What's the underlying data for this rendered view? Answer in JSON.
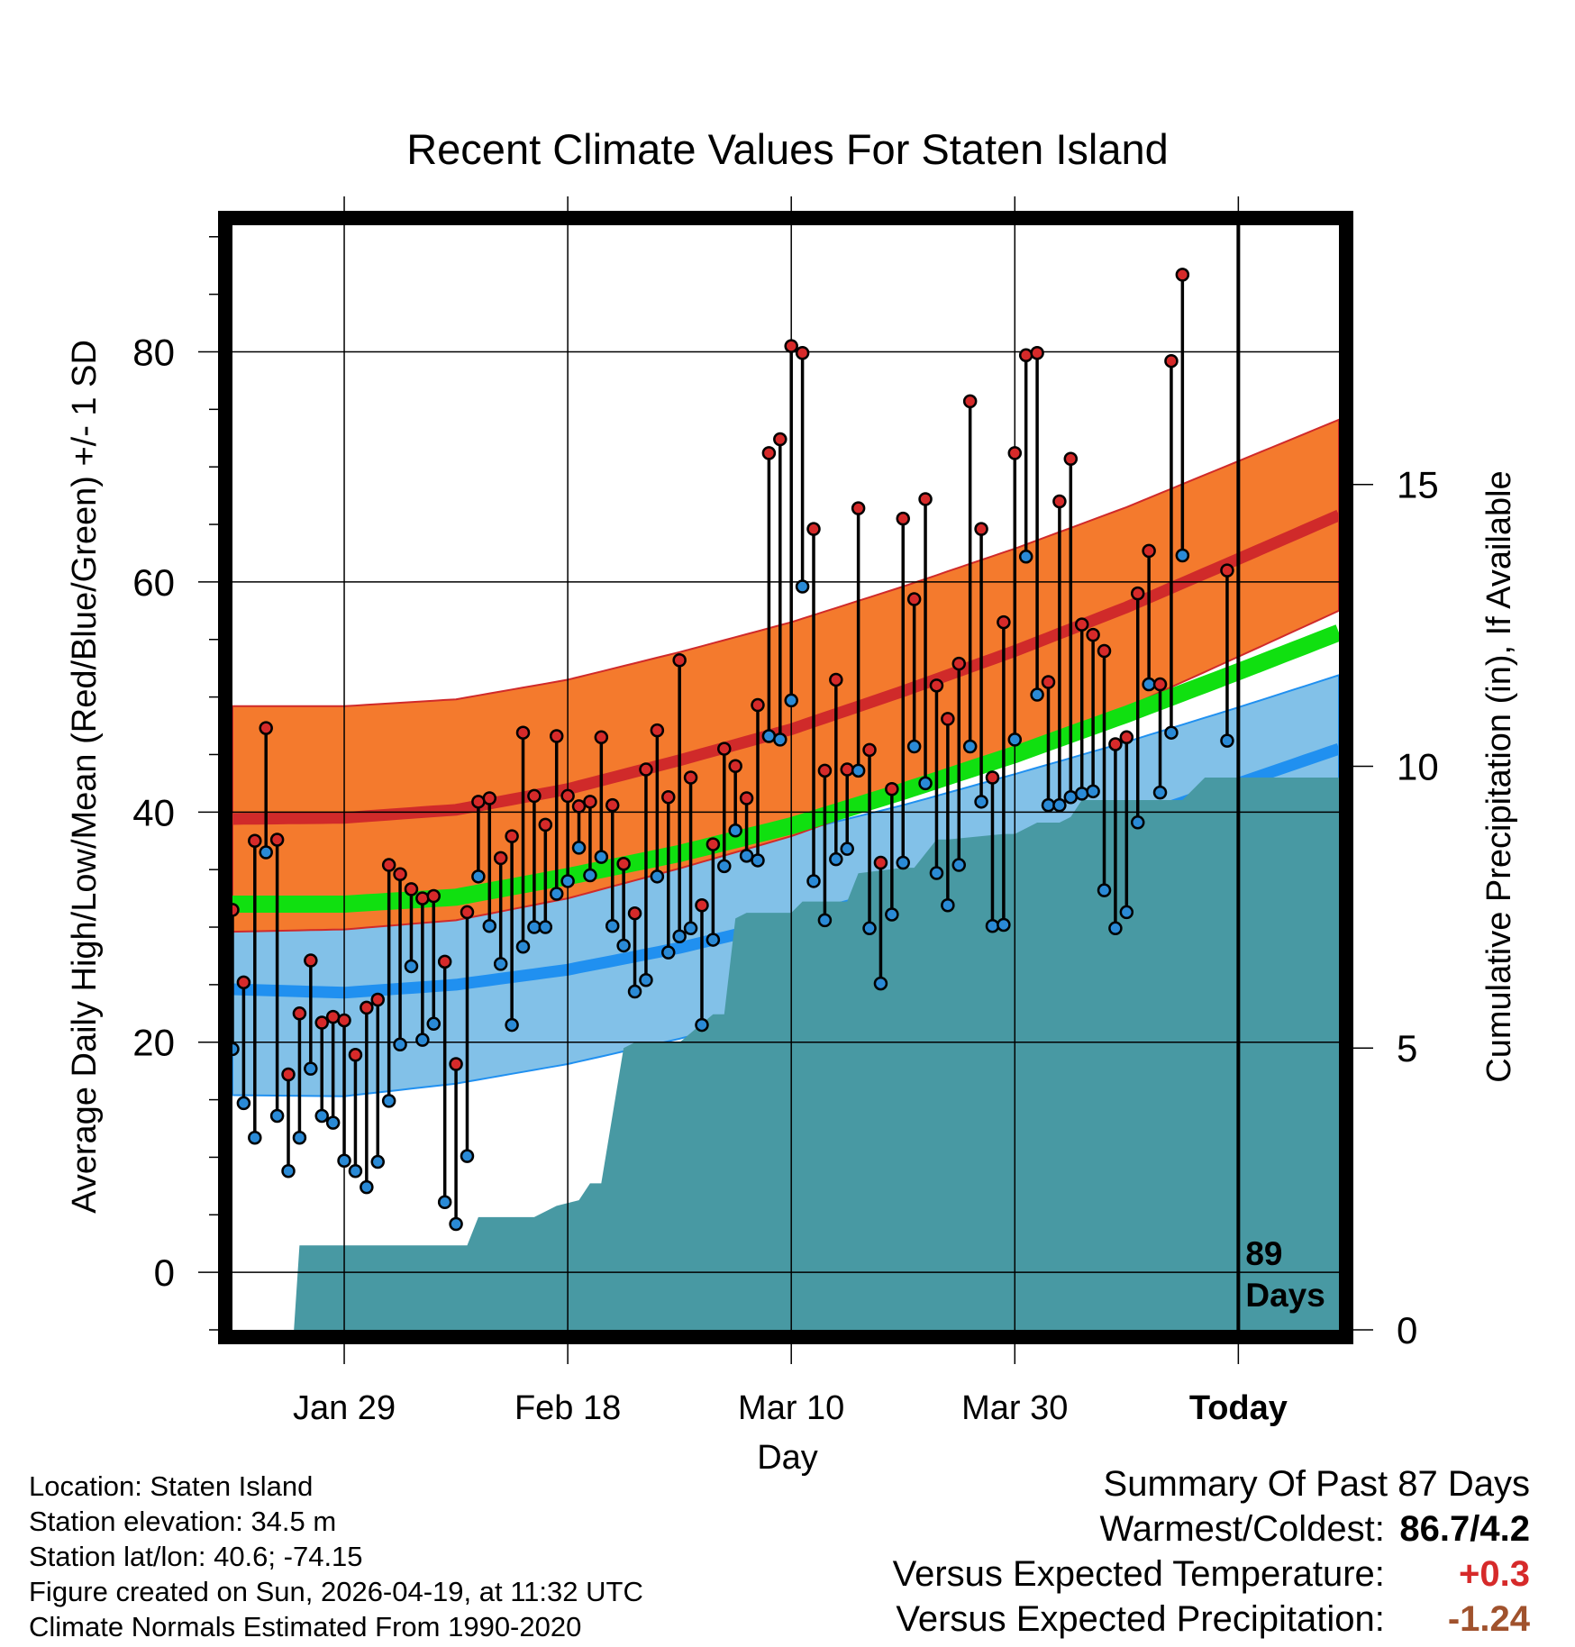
{
  "chart_data": {
    "type": "line",
    "title": "Recent Climate Values For Staten Island",
    "xlabel": "Day",
    "ylabel": "Average Daily High/Low/Mean (Red/Blue/Green) +/- 1 SD",
    "y2label": "Cumulative Precipitation (in), If Available",
    "xlim": [
      0,
      99
    ],
    "ylim": [
      -5,
      91
    ],
    "y2lim": [
      0,
      19.6
    ],
    "x_ticks": [
      {
        "day": 10,
        "label": "Jan 29"
      },
      {
        "day": 30,
        "label": "Feb 18"
      },
      {
        "day": 50,
        "label": "Mar 10"
      },
      {
        "day": 70,
        "label": "Mar 30"
      },
      {
        "day": 90,
        "label": "Today"
      }
    ],
    "y_ticks": [
      0,
      20,
      40,
      60,
      80
    ],
    "y2_ticks": [
      0,
      5,
      10,
      15
    ],
    "today_day": 90,
    "today_label_line1": "89",
    "today_label_line2": "Days",
    "normals": {
      "days": [
        0,
        10,
        20,
        30,
        40,
        50,
        60,
        70,
        80,
        90,
        99
      ],
      "high_mean": [
        39.4,
        39.5,
        40.2,
        42.0,
        44.5,
        47.2,
        50.5,
        54.0,
        57.8,
        62.0,
        65.8
      ],
      "high_sd": [
        9.8,
        9.7,
        9.6,
        9.5,
        9.4,
        9.3,
        9.1,
        8.9,
        8.7,
        8.5,
        8.3
      ],
      "low_mean": [
        24.6,
        24.3,
        25.0,
        26.3,
        28.2,
        30.5,
        33.2,
        36.2,
        39.2,
        42.5,
        45.5
      ],
      "low_sd": [
        9.2,
        9.0,
        8.6,
        8.2,
        7.9,
        7.7,
        7.4,
        7.1,
        6.9,
        6.6,
        6.4
      ],
      "avg_mean": [
        32.0,
        32.0,
        32.6,
        34.4,
        36.4,
        38.8,
        41.8,
        45.0,
        48.5,
        52.2,
        55.6
      ]
    },
    "observations": [
      {
        "day": 0,
        "high": 31.5,
        "low": 19.4
      },
      {
        "day": 1,
        "high": 25.2,
        "low": 14.7
      },
      {
        "day": 2,
        "high": 37.5,
        "low": 11.7
      },
      {
        "day": 3,
        "high": 47.3,
        "low": 36.5
      },
      {
        "day": 4,
        "high": 37.6,
        "low": 13.6
      },
      {
        "day": 5,
        "high": 17.2,
        "low": 8.8
      },
      {
        "day": 6,
        "high": 22.5,
        "low": 11.7
      },
      {
        "day": 7,
        "high": 27.1,
        "low": 17.7
      },
      {
        "day": 8,
        "high": 21.7,
        "low": 13.6
      },
      {
        "day": 9,
        "high": 22.2,
        "low": 13.0
      },
      {
        "day": 10,
        "high": 21.9,
        "low": 9.7
      },
      {
        "day": 11,
        "high": 18.9,
        "low": 8.8
      },
      {
        "day": 12,
        "high": 23.0,
        "low": 7.4
      },
      {
        "day": 13,
        "high": 23.7,
        "low": 9.6
      },
      {
        "day": 14,
        "high": 35.4,
        "low": 14.9
      },
      {
        "day": 15,
        "high": 34.6,
        "low": 19.8
      },
      {
        "day": 16,
        "high": 33.3,
        "low": 26.6
      },
      {
        "day": 17,
        "high": 32.5,
        "low": 20.2
      },
      {
        "day": 18,
        "high": 32.7,
        "low": 21.6
      },
      {
        "day": 19,
        "high": 27.0,
        "low": 6.1
      },
      {
        "day": 20,
        "high": 18.1,
        "low": 4.2
      },
      {
        "day": 21,
        "high": 31.3,
        "low": 10.1
      },
      {
        "day": 22,
        "high": 40.9,
        "low": 34.4
      },
      {
        "day": 23,
        "high": 41.2,
        "low": 30.1
      },
      {
        "day": 24,
        "high": 36.0,
        "low": 26.8
      },
      {
        "day": 25,
        "high": 37.9,
        "low": 21.5
      },
      {
        "day": 26,
        "high": 46.9,
        "low": 28.3
      },
      {
        "day": 27,
        "high": 41.4,
        "low": 30.0
      },
      {
        "day": 28,
        "high": 38.9,
        "low": 30.0
      },
      {
        "day": 29,
        "high": 46.6,
        "low": 32.9
      },
      {
        "day": 30,
        "high": 41.4,
        "low": 34.0
      },
      {
        "day": 31,
        "high": 40.5,
        "low": 36.9
      },
      {
        "day": 32,
        "high": 40.9,
        "low": 34.5
      },
      {
        "day": 33,
        "high": 46.5,
        "low": 36.1
      },
      {
        "day": 34,
        "high": 40.6,
        "low": 30.1
      },
      {
        "day": 35,
        "high": 35.5,
        "low": 28.4
      },
      {
        "day": 36,
        "high": 31.2,
        "low": 24.4
      },
      {
        "day": 37,
        "high": 43.7,
        "low": 25.4
      },
      {
        "day": 38,
        "high": 47.1,
        "low": 34.4
      },
      {
        "day": 39,
        "high": 41.3,
        "low": 27.8
      },
      {
        "day": 40,
        "high": 53.2,
        "low": 29.2
      },
      {
        "day": 41,
        "high": 43.0,
        "low": 29.9
      },
      {
        "day": 42,
        "high": 31.9,
        "low": 21.5
      },
      {
        "day": 43,
        "high": 37.2,
        "low": 28.9
      },
      {
        "day": 44,
        "high": 45.5,
        "low": 35.3
      },
      {
        "day": 45,
        "high": 44.0,
        "low": 38.4
      },
      {
        "day": 46,
        "high": 41.2,
        "low": 36.2
      },
      {
        "day": 47,
        "high": 49.3,
        "low": 35.8
      },
      {
        "day": 48,
        "high": 71.2,
        "low": 46.6
      },
      {
        "day": 49,
        "high": 72.4,
        "low": 46.3
      },
      {
        "day": 50,
        "high": 80.5,
        "low": 49.7
      },
      {
        "day": 51,
        "high": 79.9,
        "low": 59.6
      },
      {
        "day": 52,
        "high": 64.6,
        "low": 34.0
      },
      {
        "day": 53,
        "high": 43.6,
        "low": 30.6
      },
      {
        "day": 54,
        "high": 51.5,
        "low": 35.9
      },
      {
        "day": 55,
        "high": 43.7,
        "low": 36.8
      },
      {
        "day": 56,
        "high": 66.4,
        "low": 43.6
      },
      {
        "day": 57,
        "high": 45.4,
        "low": 29.9
      },
      {
        "day": 58,
        "high": 35.6,
        "low": 25.1
      },
      {
        "day": 59,
        "high": 42.0,
        "low": 31.1
      },
      {
        "day": 60,
        "high": 65.5,
        "low": 35.6
      },
      {
        "day": 61,
        "high": 58.5,
        "low": 45.7
      },
      {
        "day": 62,
        "high": 67.2,
        "low": 42.5
      },
      {
        "day": 63,
        "high": 51.0,
        "low": 34.7
      },
      {
        "day": 64,
        "high": 48.1,
        "low": 31.9
      },
      {
        "day": 65,
        "high": 52.9,
        "low": 35.4
      },
      {
        "day": 66,
        "high": 75.7,
        "low": 45.7
      },
      {
        "day": 67,
        "high": 64.6,
        "low": 40.9
      },
      {
        "day": 68,
        "high": 43.0,
        "low": 30.1
      },
      {
        "day": 69,
        "high": 56.5,
        "low": 30.2
      },
      {
        "day": 70,
        "high": 71.2,
        "low": 46.3
      },
      {
        "day": 71,
        "high": 79.7,
        "low": 62.2
      },
      {
        "day": 72,
        "high": 79.9,
        "low": 50.2
      },
      {
        "day": 73,
        "high": 51.3,
        "low": 40.6
      },
      {
        "day": 74,
        "high": 67.0,
        "low": 40.6
      },
      {
        "day": 75,
        "high": 70.7,
        "low": 41.3
      },
      {
        "day": 76,
        "high": 56.3,
        "low": 41.6
      },
      {
        "day": 77,
        "high": 55.4,
        "low": 41.8
      },
      {
        "day": 78,
        "high": 54.0,
        "low": 33.2
      },
      {
        "day": 79,
        "high": 45.9,
        "low": 29.9
      },
      {
        "day": 80,
        "high": 46.5,
        "low": 31.3
      },
      {
        "day": 81,
        "high": 59.0,
        "low": 39.1
      },
      {
        "day": 82,
        "high": 62.7,
        "low": 51.1
      },
      {
        "day": 83,
        "high": 51.1,
        "low": 41.7
      },
      {
        "day": 84,
        "high": 79.2,
        "low": 46.9
      },
      {
        "day": 85,
        "high": 86.7,
        "low": 62.3
      },
      {
        "day": 89,
        "high": 61.0,
        "low": 46.2
      }
    ],
    "precipitation_cumulative": {
      "days": [
        0,
        5.5,
        6,
        21,
        22,
        27,
        29,
        31,
        32,
        33,
        35,
        36,
        40,
        43,
        44,
        45,
        46,
        48,
        49,
        50,
        51,
        53,
        55,
        56,
        60,
        61,
        63,
        64,
        69,
        70,
        72,
        74,
        75,
        76,
        85,
        87,
        99
      ],
      "values": [
        0,
        0,
        1.5,
        1.5,
        2.0,
        2.0,
        2.2,
        2.3,
        2.6,
        2.6,
        5.0,
        5.1,
        5.1,
        5.6,
        5.6,
        7.3,
        7.4,
        7.4,
        7.4,
        7.4,
        7.6,
        7.6,
        7.6,
        8.1,
        8.2,
        8.2,
        8.7,
        8.7,
        8.8,
        8.8,
        9.0,
        9.0,
        9.1,
        9.4,
        9.4,
        9.8,
        9.8
      ]
    }
  },
  "footer": {
    "location": "Location: Staten Island",
    "elevation": "Station elevation: 34.5 m",
    "latlon": "Station lat/lon: 40.6; -74.15",
    "created": "Figure created on Sun, 2026-04-19, at 11:32 UTC",
    "normals_note": "Climate Normals Estimated From 1990-2020"
  },
  "summary": {
    "heading": "Summary Of Past 87 Days",
    "warmest_label": "Warmest/Coldest:",
    "warmest_value": "86.7/4.2",
    "temp_label": "Versus Expected Temperature:",
    "temp_value": "+0.3",
    "precip_label": "Versus Expected Precipitation:",
    "precip_value": "-1.24"
  },
  "colors": {
    "high_band": "#f47a2d",
    "high_line": "#d02a2a",
    "low_band": "#82c1e8",
    "low_line": "#2090f0",
    "avg_line": "#10e010",
    "precip_fill": "#4899a3",
    "high_point": "#d62a2a",
    "low_point": "#2a8ad6"
  }
}
